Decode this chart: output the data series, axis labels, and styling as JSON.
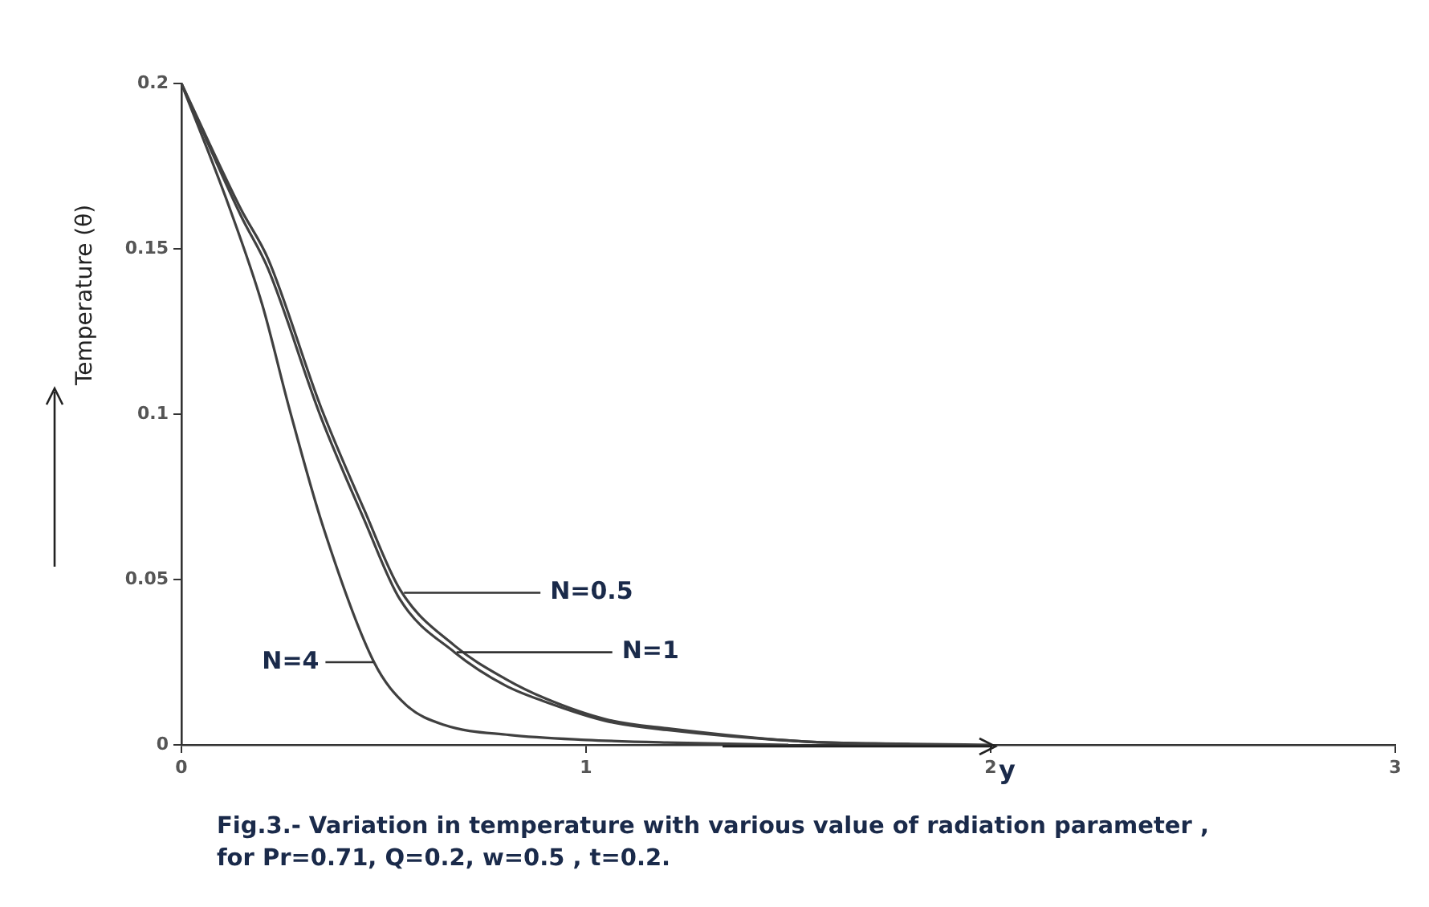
{
  "chart_data": {
    "type": "line",
    "title": "Fig.3.- Variation in temperature with various value of radiation parameter , for Pr=0.71, Q=0.2, w=0.5 , t=0.2.",
    "xlabel": "y",
    "ylabel": "Temperature (θ)",
    "xlim": [
      0,
      3
    ],
    "xticks": [
      0,
      1,
      2,
      3
    ],
    "ylim": [
      0,
      0.2
    ],
    "yticks": [
      0,
      0.05,
      0.1,
      0.15,
      0.2
    ],
    "grid": false,
    "legend": false,
    "marker": "none",
    "line_style": "solid",
    "series": [
      {
        "color": "#404040",
        "x": [
          0,
          0.147,
          0.214,
          0.345,
          0.452,
          0.54,
          0.675,
          0.8,
          0.9,
          1.05,
          1.2,
          1.54,
          1.8,
          2.0
        ],
        "values": [
          0.2,
          0.162,
          0.147,
          0.102,
          0.071,
          0.047,
          0.03,
          0.02,
          0.014,
          0.0077,
          0.005,
          0.001,
          0.0003,
          0
        ]
      },
      {
        "color": "#404040",
        "x": [
          0,
          0.147,
          0.214,
          0.345,
          0.452,
          0.54,
          0.675,
          0.8,
          0.9,
          1.05,
          1.2,
          1.54,
          1.8
        ],
        "values": [
          0.2,
          0.16,
          0.144,
          0.099,
          0.068,
          0.044,
          0.028,
          0.018,
          0.013,
          0.0072,
          0.0045,
          0.001,
          0.0002
        ]
      },
      {
        "color": "#404040",
        "x": [
          0,
          0.12,
          0.2,
          0.266,
          0.35,
          0.476,
          0.556,
          0.65,
          0.81,
          1.0,
          1.2,
          1.5
        ],
        "values": [
          0.2,
          0.162,
          0.133,
          0.102,
          0.066,
          0.025,
          0.012,
          0.006,
          0.003,
          0.0015,
          0.0007,
          0
        ]
      }
    ],
    "annotations": [
      {
        "text": "N=0.5",
        "x": 0.55,
        "y": 0.046
      },
      {
        "text": "N=1",
        "x": 0.68,
        "y": 0.028
      },
      {
        "text": "N=4",
        "x": 0.475,
        "y": 0.025
      }
    ]
  }
}
